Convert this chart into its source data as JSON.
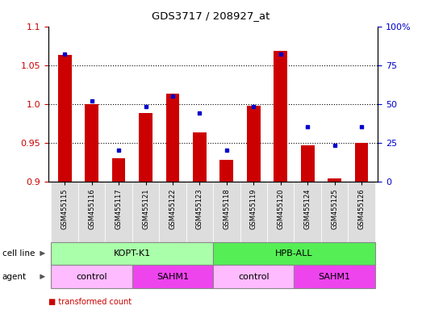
{
  "title": "GDS3717 / 208927_at",
  "samples": [
    "GSM455115",
    "GSM455116",
    "GSM455117",
    "GSM455121",
    "GSM455122",
    "GSM455123",
    "GSM455118",
    "GSM455119",
    "GSM455120",
    "GSM455124",
    "GSM455125",
    "GSM455126"
  ],
  "red_values": [
    1.063,
    1.0,
    0.93,
    0.988,
    1.013,
    0.963,
    0.928,
    0.998,
    1.068,
    0.946,
    0.904,
    0.95
  ],
  "blue_values": [
    82,
    52,
    20,
    48,
    55,
    44,
    20,
    48,
    82,
    35,
    23,
    35
  ],
  "ylim_left": [
    0.9,
    1.1
  ],
  "ylim_right": [
    0,
    100
  ],
  "yticks_left": [
    0.9,
    0.95,
    1.0,
    1.05,
    1.1
  ],
  "yticks_right": [
    0,
    25,
    50,
    75,
    100
  ],
  "ytick_labels_right": [
    "0",
    "25",
    "50",
    "75",
    "100%"
  ],
  "bar_color": "#cc0000",
  "dot_color": "#0000cc",
  "cell_line_groups": [
    {
      "label": "KOPT-K1",
      "start": 0,
      "end": 6,
      "color": "#aaffaa"
    },
    {
      "label": "HPB-ALL",
      "start": 6,
      "end": 12,
      "color": "#55ee55"
    }
  ],
  "agent_groups": [
    {
      "label": "control",
      "start": 0,
      "end": 3,
      "color": "#ffbbff"
    },
    {
      "label": "SAHM1",
      "start": 3,
      "end": 6,
      "color": "#ee44ee"
    },
    {
      "label": "control",
      "start": 6,
      "end": 9,
      "color": "#ffbbff"
    },
    {
      "label": "SAHM1",
      "start": 9,
      "end": 12,
      "color": "#ee44ee"
    }
  ],
  "axis_label_left_color": "#cc0000",
  "axis_label_right_color": "#0000cc",
  "bar_width": 0.5,
  "bg_color": "#ffffff",
  "plot_bg_color": "#ffffff",
  "xticklabel_bg": "#dddddd",
  "band_border_color": "#888888"
}
